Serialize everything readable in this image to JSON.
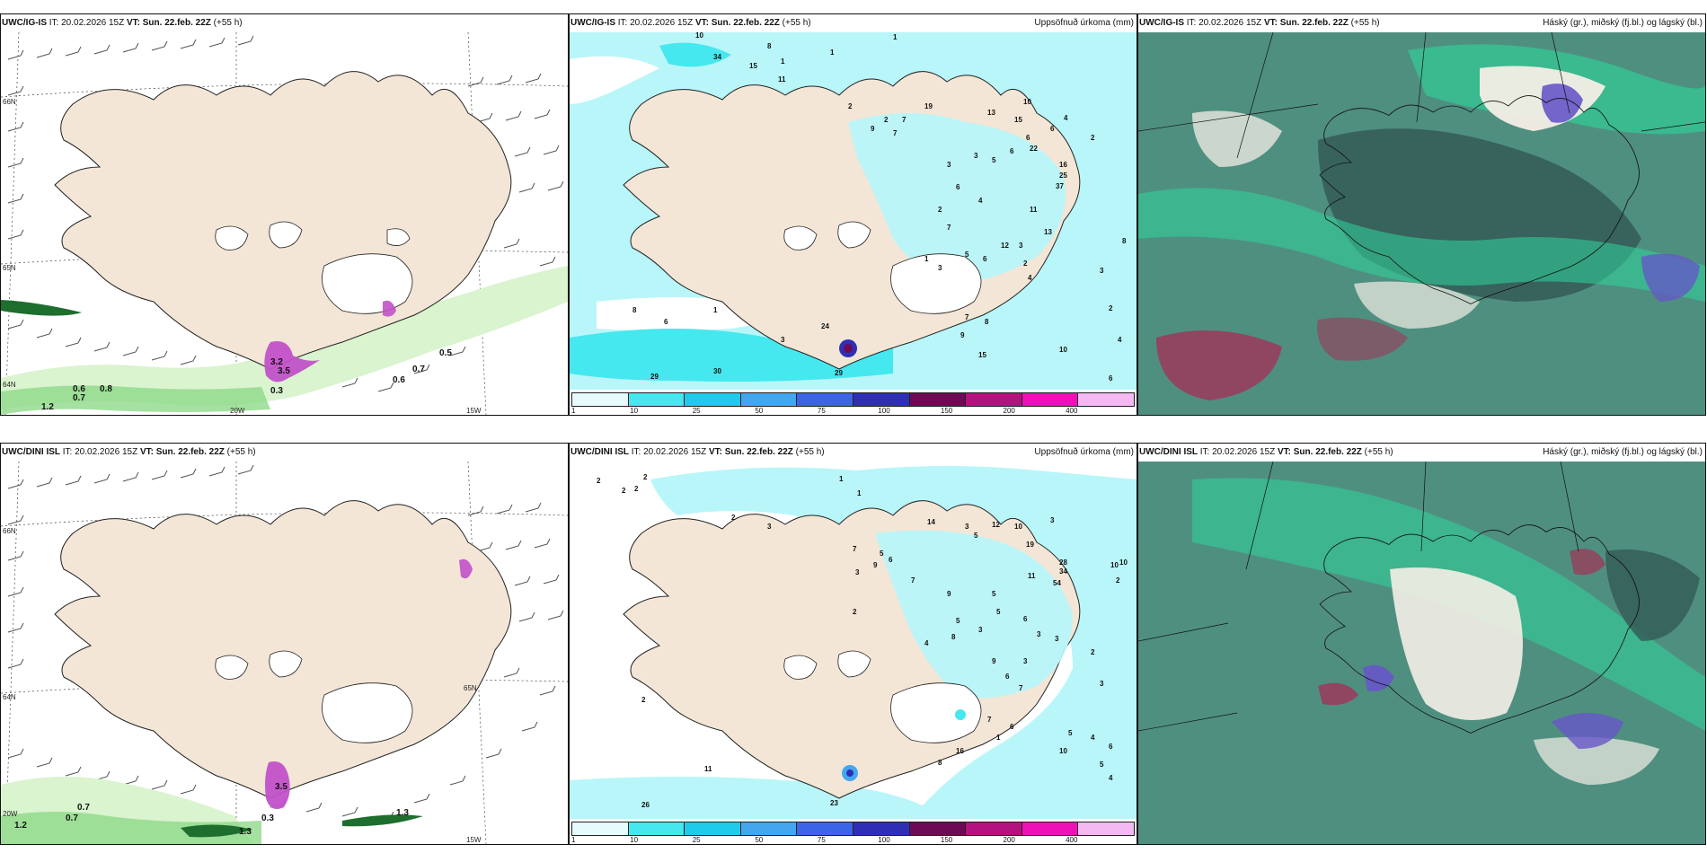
{
  "rows": [
    {
      "model": "UWC/IG-IS",
      "it_text": "IT: 20.02.2026 15Z",
      "vt_label": "VT:",
      "vt_value": "Sun. 22.feb. 22Z",
      "lead": "(+55 h)",
      "lon_labels": [
        "20W",
        "15W"
      ],
      "lat_labels": [
        "66N",
        "65N",
        "64N"
      ],
      "wind_labels": [
        "3.2",
        "1.2",
        "0.6",
        "0.7",
        "0.8",
        "0.5",
        "0.7",
        "0.6",
        "3.5",
        "0.3"
      ],
      "precip_numbers": [
        "10",
        "34",
        "15",
        "8",
        "1",
        "11",
        "1",
        "1",
        "2",
        "9",
        "2",
        "19",
        "7",
        "7",
        "13",
        "15",
        "10",
        "6",
        "4",
        "6",
        "22",
        "3",
        "5",
        "6",
        "16",
        "25",
        "37",
        "3",
        "6",
        "4",
        "2",
        "7",
        "11",
        "13",
        "2",
        "4",
        "12",
        "3",
        "5",
        "6",
        "1",
        "3",
        "8",
        "6",
        "1",
        "3",
        "24",
        "29",
        "30",
        "29",
        "7",
        "8",
        "9",
        "15",
        "10",
        "2",
        "4",
        "6",
        "8",
        "3",
        "2"
      ]
    },
    {
      "model": "UWC/DINI ISL",
      "it_text": "IT: 20.02.2026 15Z",
      "vt_label": "VT:",
      "vt_value": "Sun. 22.feb. 22Z",
      "lead": "(+55 h)",
      "lon_labels": [
        "20W",
        "15W"
      ],
      "lat_labels": [
        "66N",
        "65N",
        "64N"
      ],
      "wind_labels": [
        "0.7",
        "0.7",
        "1.3",
        "3.5",
        "0.3",
        "1.2",
        "1.3"
      ],
      "precip_numbers": [
        "2",
        "2",
        "2",
        "2",
        "1",
        "1",
        "3",
        "2",
        "7",
        "9",
        "3",
        "5",
        "6",
        "14",
        "3",
        "5",
        "12",
        "10",
        "19",
        "3",
        "11",
        "28",
        "34",
        "54",
        "10",
        "10",
        "2",
        "7",
        "9",
        "5",
        "3",
        "8",
        "5",
        "5",
        "6",
        "2",
        "4",
        "3",
        "3",
        "2",
        "9",
        "3",
        "6",
        "7",
        "11",
        "26",
        "16",
        "23",
        "2",
        "8",
        "7",
        "6",
        "5",
        "4",
        "6",
        "1",
        "3",
        "5",
        "4",
        "10"
      ]
    }
  ],
  "precip_panel": {
    "title": "Uppsöfnuð úrkoma (mm)",
    "legend_labels": [
      "1",
      "10",
      "25",
      "50",
      "75",
      "100",
      "150",
      "200",
      "400"
    ],
    "legend_colors": [
      "#e6fbfd",
      "#45e8ee",
      "#1ecbea",
      "#43a7ef",
      "#3c64e6",
      "#2f2fb6",
      "#6e0a55",
      "#b4127e",
      "#f010b8",
      "#f4b8f2"
    ]
  },
  "cloud_panel": {
    "title": "Háský (gr.), miðský (fj.bl.) og lágský (bl.)"
  },
  "colors": {
    "land": "#f3e6d6",
    "sea": "#ffffff",
    "precip_light": "#b8f6fa",
    "precip_mid": "#45e8ee",
    "wind_green_light": "#d9f4cf",
    "wind_green": "#8fd98a",
    "wind_green_dark": "#1e6e2d",
    "wind_magenta": "#c251c9",
    "cloud_base": "#4f8f80",
    "cloud_dark": "#355e59",
    "cloud_green": "#2fd69a",
    "cloud_white": "#f4eee6",
    "cloud_blue": "#6656c8",
    "cloud_red": "#9b3a5a"
  }
}
